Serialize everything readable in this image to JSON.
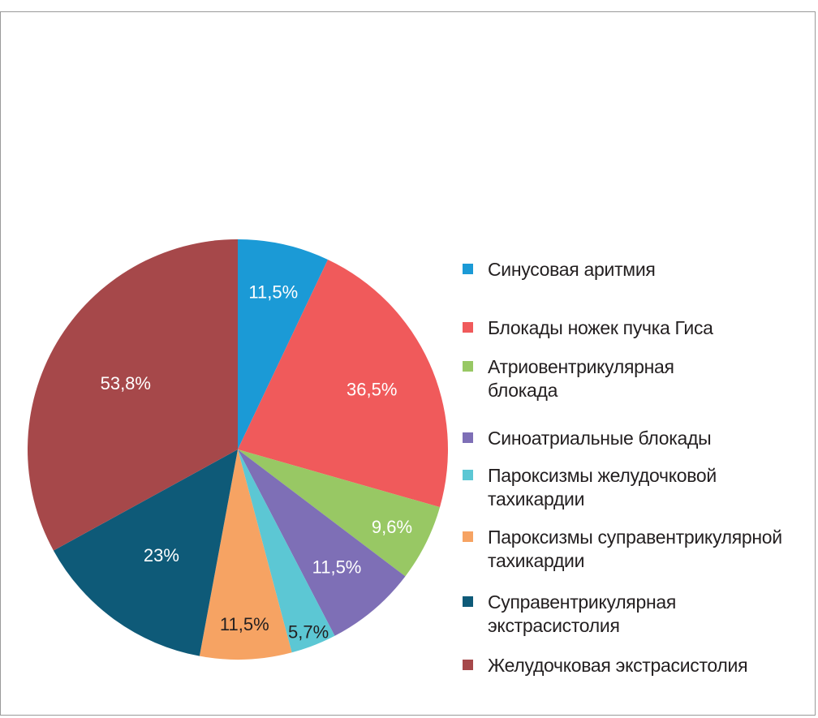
{
  "chart_data": {
    "type": "pie",
    "title": "",
    "start_angle_deg": 0,
    "direction": "clockwise",
    "legend_position": "right",
    "slices": [
      {
        "label": "Синусовая аритмия",
        "value": 11.5,
        "value_label": "11,5%",
        "color": "#1b9ad6"
      },
      {
        "label": "Блокады ножек пучка Гиса",
        "value": 36.5,
        "value_label": "36,5%",
        "color": "#f05a5b"
      },
      {
        "label": "Атриовентрикулярная\nблокада",
        "value": 9.6,
        "value_label": "9,6%",
        "color": "#98c864"
      },
      {
        "label": "Синоатриальные блокады",
        "value": 11.5,
        "value_label": "11,5%",
        "color": "#7e6fb6"
      },
      {
        "label": "Пароксизмы желудочковой\nтахикардии",
        "value": 5.7,
        "value_label": "5,7%",
        "color": "#5cc7d4"
      },
      {
        "label": "Пароксизмы суправентрикулярной\nтахикардии",
        "value": 11.5,
        "value_label": "11,5%",
        "color": "#f6a363"
      },
      {
        "label": "Суправентрикулярная\nэкстрасистолия",
        "value": 23,
        "value_label": "23%",
        "color": "#0e5a78"
      },
      {
        "label": "Желудочковая экстрасистолия",
        "value": 53.8,
        "value_label": "53,8%",
        "color": "#a6484a"
      }
    ]
  }
}
